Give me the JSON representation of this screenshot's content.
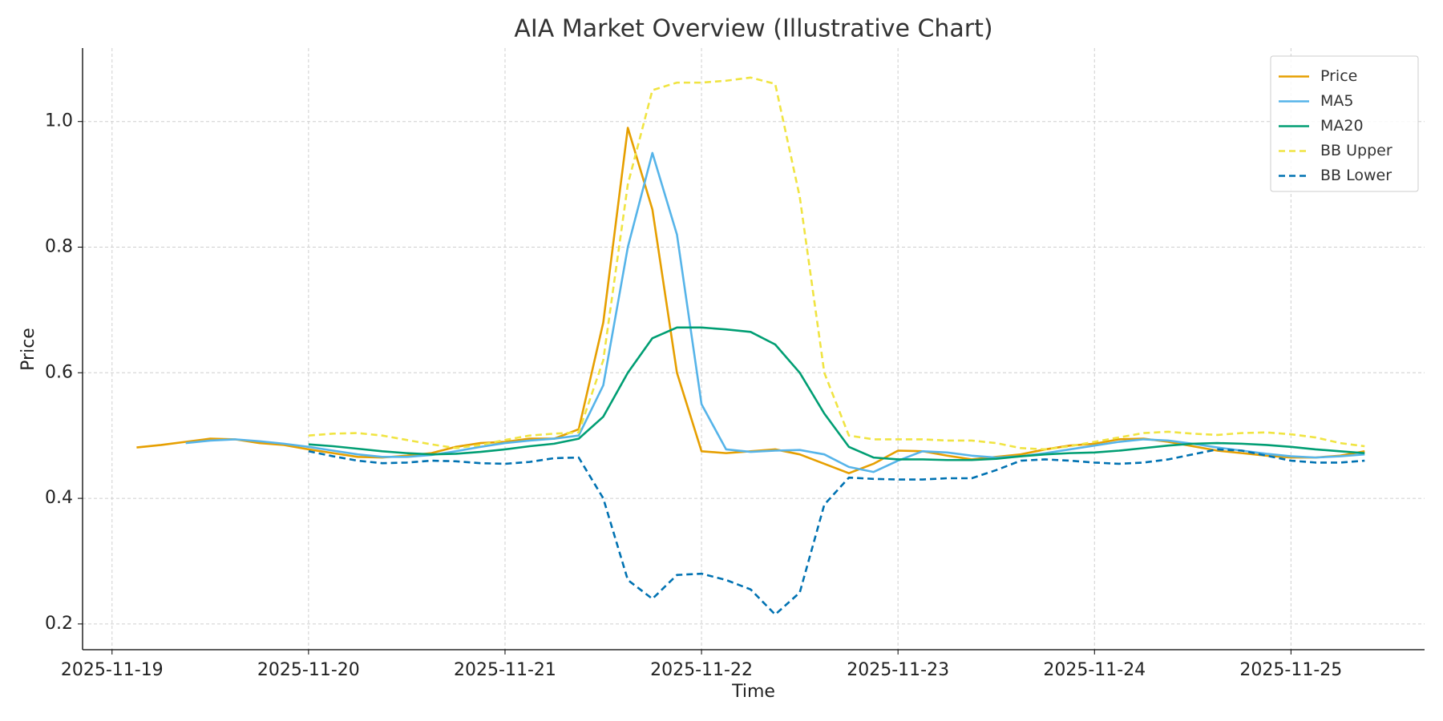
{
  "chart_data": {
    "type": "line",
    "title": "AIA Market Overview (Illustrative Chart)",
    "x_label": "Time",
    "y_label": "Price",
    "grid": true,
    "legend": "upper right",
    "x": [
      "2025-11-19T03:00",
      "2025-11-19T06:00",
      "2025-11-19T09:00",
      "2025-11-19T12:00",
      "2025-11-19T15:00",
      "2025-11-19T18:00",
      "2025-11-19T21:00",
      "2025-11-20T00:00",
      "2025-11-20T03:00",
      "2025-11-20T06:00",
      "2025-11-20T09:00",
      "2025-11-20T12:00",
      "2025-11-20T15:00",
      "2025-11-20T18:00",
      "2025-11-20T21:00",
      "2025-11-21T00:00",
      "2025-11-21T03:00",
      "2025-11-21T06:00",
      "2025-11-21T09:00",
      "2025-11-21T12:00",
      "2025-11-21T15:00",
      "2025-11-21T18:00",
      "2025-11-21T21:00",
      "2025-11-22T00:00",
      "2025-11-22T03:00",
      "2025-11-22T06:00",
      "2025-11-22T09:00",
      "2025-11-22T12:00",
      "2025-11-22T15:00",
      "2025-11-22T18:00",
      "2025-11-22T21:00",
      "2025-11-23T00:00",
      "2025-11-23T03:00",
      "2025-11-23T06:00",
      "2025-11-23T09:00",
      "2025-11-23T12:00",
      "2025-11-23T15:00",
      "2025-11-23T18:00",
      "2025-11-23T21:00",
      "2025-11-24T00:00",
      "2025-11-24T03:00",
      "2025-11-24T06:00",
      "2025-11-24T09:00",
      "2025-11-24T12:00",
      "2025-11-24T15:00",
      "2025-11-24T18:00",
      "2025-11-24T21:00",
      "2025-11-25T00:00",
      "2025-11-25T03:00",
      "2025-11-25T06:00",
      "2025-11-25T09:00"
    ],
    "series": [
      {
        "name": "Price",
        "color": "#E69F00",
        "linestyle": "solid",
        "values": [
          0.481,
          0.485,
          0.49,
          0.495,
          0.494,
          0.488,
          0.485,
          0.478,
          0.472,
          0.466,
          0.465,
          0.468,
          0.472,
          0.482,
          0.488,
          0.49,
          0.495,
          0.495,
          0.51,
          0.68,
          0.99,
          0.86,
          0.6,
          0.475,
          0.472,
          0.475,
          0.478,
          0.47,
          0.455,
          0.44,
          0.455,
          0.476,
          0.475,
          0.468,
          0.462,
          0.466,
          0.47,
          0.478,
          0.484,
          0.487,
          0.494,
          0.495,
          0.49,
          0.483,
          0.476,
          0.472,
          0.468,
          0.465,
          0.465,
          0.468,
          0.475
        ]
      },
      {
        "name": "MA5",
        "color": "#56B4E9",
        "linestyle": "solid",
        "values": [
          null,
          null,
          0.488,
          0.492,
          0.494,
          0.491,
          0.487,
          0.482,
          0.476,
          0.47,
          0.466,
          0.466,
          0.469,
          0.475,
          0.482,
          0.488,
          0.492,
          0.495,
          0.5,
          0.58,
          0.8,
          0.95,
          0.82,
          0.55,
          0.478,
          0.474,
          0.476,
          0.477,
          0.47,
          0.45,
          0.442,
          0.46,
          0.475,
          0.473,
          0.468,
          0.465,
          0.467,
          0.472,
          0.478,
          0.484,
          0.49,
          0.494,
          0.492,
          0.487,
          0.481,
          0.476,
          0.471,
          0.467,
          0.465,
          0.467,
          0.47
        ]
      },
      {
        "name": "MA20",
        "color": "#009E73",
        "linestyle": "solid",
        "values": [
          null,
          null,
          null,
          null,
          null,
          null,
          null,
          0.486,
          0.483,
          0.479,
          0.475,
          0.472,
          0.47,
          0.471,
          0.474,
          0.478,
          0.483,
          0.487,
          0.495,
          0.53,
          0.6,
          0.655,
          0.672,
          0.672,
          0.669,
          0.665,
          0.645,
          0.6,
          0.535,
          0.482,
          0.465,
          0.462,
          0.462,
          0.461,
          0.461,
          0.463,
          0.467,
          0.47,
          0.472,
          0.473,
          0.476,
          0.48,
          0.484,
          0.487,
          0.488,
          0.487,
          0.485,
          0.482,
          0.478,
          0.475,
          0.472
        ]
      },
      {
        "name": "BB Upper",
        "color": "#F0E442",
        "linestyle": "dashed",
        "values": [
          null,
          null,
          null,
          null,
          null,
          null,
          null,
          0.5,
          0.503,
          0.504,
          0.5,
          0.493,
          0.486,
          0.48,
          0.485,
          0.493,
          0.5,
          0.503,
          0.505,
          0.62,
          0.9,
          1.05,
          1.062,
          1.062,
          1.065,
          1.07,
          1.06,
          0.88,
          0.6,
          0.5,
          0.494,
          0.494,
          0.494,
          0.492,
          0.492,
          0.488,
          0.48,
          0.478,
          0.483,
          0.49,
          0.497,
          0.504,
          0.506,
          0.503,
          0.501,
          0.504,
          0.505,
          0.502,
          0.497,
          0.488,
          0.483
        ]
      },
      {
        "name": "BB Lower",
        "color": "#0072B2",
        "linestyle": "dashed",
        "values": [
          null,
          null,
          null,
          null,
          null,
          null,
          null,
          0.475,
          0.467,
          0.46,
          0.456,
          0.457,
          0.46,
          0.459,
          0.456,
          0.455,
          0.458,
          0.464,
          0.465,
          0.4,
          0.27,
          0.24,
          0.278,
          0.28,
          0.27,
          0.255,
          0.215,
          0.25,
          0.39,
          0.433,
          0.431,
          0.43,
          0.43,
          0.432,
          0.432,
          0.445,
          0.46,
          0.462,
          0.46,
          0.457,
          0.455,
          0.457,
          0.462,
          0.47,
          0.478,
          0.476,
          0.468,
          0.46,
          0.457,
          0.457,
          0.46
        ]
      }
    ],
    "xlim": [
      "2025-11-18T20:24",
      "2025-11-25T16:19"
    ],
    "xticks": [
      "2025-11-19",
      "2025-11-20",
      "2025-11-21",
      "2025-11-22",
      "2025-11-23",
      "2025-11-24",
      "2025-11-25"
    ],
    "ylim": [
      0.159,
      1.117
    ],
    "yticks": [
      0.2,
      0.4,
      0.6,
      0.8,
      {
        "value": 1,
        "label": "1.0"
      }
    ]
  }
}
